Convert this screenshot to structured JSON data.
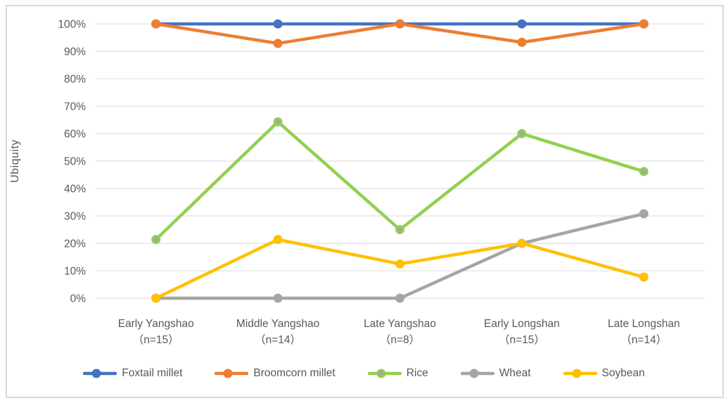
{
  "chart_data": {
    "type": "line",
    "title": "",
    "ylabel": "Ubiquity",
    "ylim": [
      0,
      100
    ],
    "ytick_step": 10,
    "ytick_suffix": "%",
    "grid": true,
    "legend_position": "bottom",
    "categories": [
      {
        "label": "Early Yangshao",
        "n_label": "（n=15）"
      },
      {
        "label": "Middle Yangshao",
        "n_label": "（n=14）"
      },
      {
        "label": "Late Yangshao",
        "n_label": "（n=8）"
      },
      {
        "label": "Early Longshan",
        "n_label": "（n=15）"
      },
      {
        "label": "Late Longshan",
        "n_label": "（n=14）"
      }
    ],
    "series": [
      {
        "name": "Foxtail millet",
        "color": "#4472C4",
        "marker_fill": "#4472C4",
        "values": [
          100,
          100,
          100,
          100,
          100
        ]
      },
      {
        "name": "Broomcorn millet",
        "color": "#ED7D31",
        "marker_fill": "#ED7D31",
        "values": [
          100,
          92.9,
          100,
          93.3,
          100
        ]
      },
      {
        "name": "Rice",
        "color": "#92D050",
        "marker_fill": "#A5A5A5",
        "values": [
          21.4,
          64.3,
          25,
          60,
          46.2
        ]
      },
      {
        "name": "Wheat",
        "color": "#A5A5A5",
        "marker_fill": "#A5A5A5",
        "values": [
          0,
          0,
          0,
          20,
          30.8
        ]
      },
      {
        "name": "Soybean",
        "color": "#FFC000",
        "marker_fill": "#FFC000",
        "values": [
          0,
          21.4,
          12.5,
          20,
          7.7
        ]
      }
    ]
  },
  "colors": {
    "text": "#595959",
    "gridline": "#D9D9D9",
    "frame_border": "#D9D9D9",
    "background": "#FFFFFF"
  }
}
